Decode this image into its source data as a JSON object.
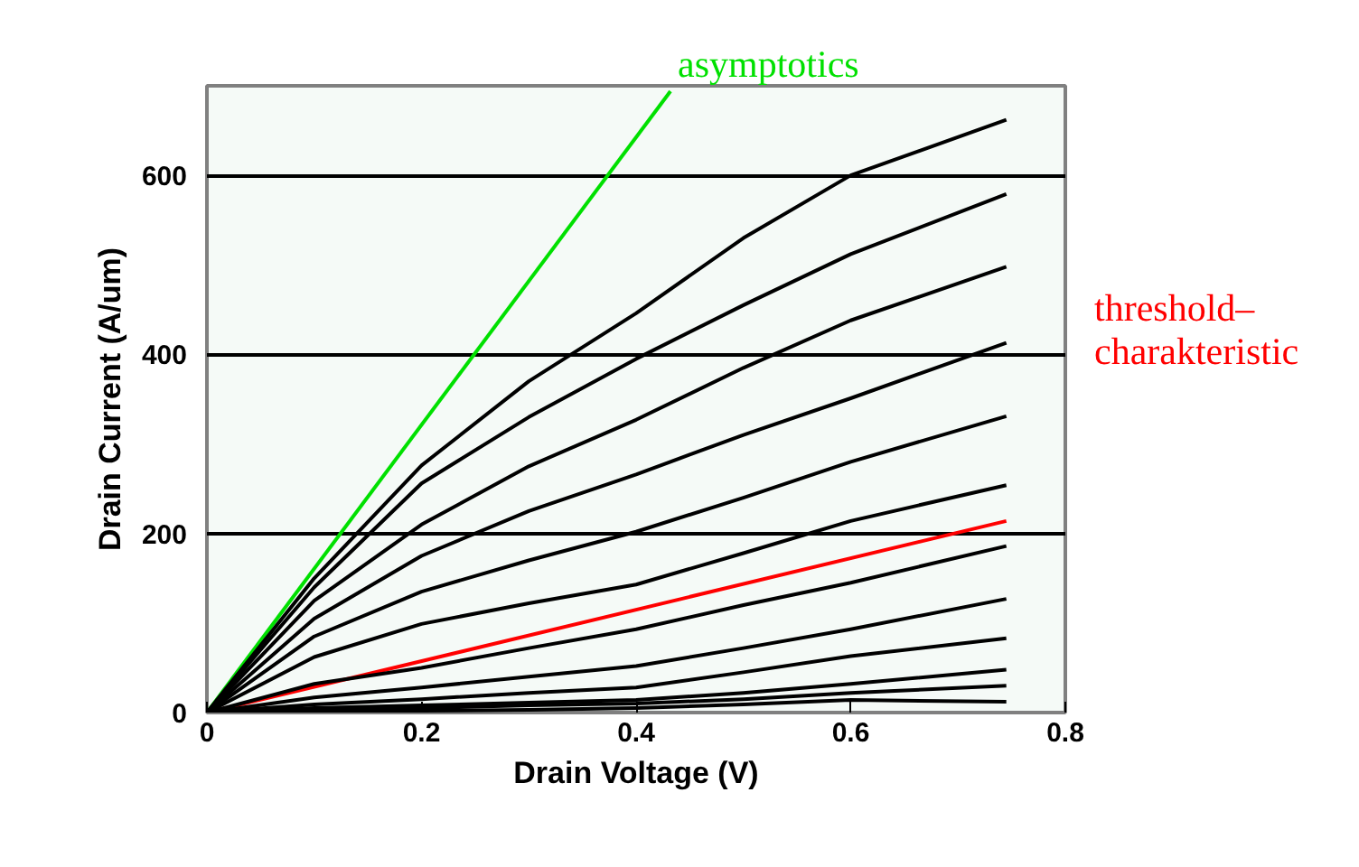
{
  "chart_data": {
    "type": "line",
    "xlabel": "Drain Voltage (V)",
    "ylabel": "Drain Current (A/um)",
    "xlim": [
      0,
      0.8
    ],
    "ylim": [
      0,
      700
    ],
    "xticks": [
      0,
      0.2,
      0.4,
      0.6,
      0.8
    ],
    "yticks": [
      0,
      200,
      400,
      600
    ],
    "grid": "y",
    "x": [
      0,
      0.1,
      0.2,
      0.3,
      0.4,
      0.5,
      0.6,
      0.745
    ],
    "series": [
      {
        "name": "asymptotics",
        "color": "#00e000",
        "x": [
          0,
          0.432
        ],
        "values": [
          0,
          694
        ]
      },
      {
        "name": "threshold–\ncharakteristic",
        "color": "#ff0000",
        "x": [
          0,
          0.745
        ],
        "values": [
          0,
          214
        ]
      },
      {
        "color": "#000000",
        "values": [
          0,
          150,
          276,
          370,
          446,
          530,
          600,
          662
        ]
      },
      {
        "color": "#000000",
        "values": [
          0,
          140,
          256,
          330,
          395,
          455,
          512,
          579
        ]
      },
      {
        "color": "#000000",
        "values": [
          0,
          125,
          210,
          275,
          327,
          385,
          438,
          498
        ]
      },
      {
        "color": "#000000",
        "values": [
          0,
          105,
          175,
          225,
          266,
          310,
          351,
          413
        ]
      },
      {
        "color": "#000000",
        "values": [
          0,
          85,
          135,
          170,
          202,
          240,
          280,
          331
        ]
      },
      {
        "color": "#000000",
        "values": [
          0,
          62,
          99,
          122,
          143,
          178,
          214,
          254
        ]
      },
      {
        "color": "#000000",
        "values": [
          0,
          32,
          50,
          72,
          93,
          120,
          145,
          186
        ]
      },
      {
        "color": "#000000",
        "values": [
          0,
          17,
          28,
          40,
          52,
          72,
          93,
          127
        ]
      },
      {
        "color": "#000000",
        "values": [
          0,
          9,
          15,
          22,
          28,
          45,
          63,
          83
        ]
      },
      {
        "color": "#000000",
        "values": [
          0,
          5,
          8,
          11,
          14,
          22,
          32,
          48
        ]
      },
      {
        "color": "#000000",
        "values": [
          0,
          3,
          5,
          8,
          10,
          15,
          22,
          30
        ]
      },
      {
        "color": "#000000",
        "values": [
          0,
          1,
          2,
          3,
          5,
          9,
          14,
          12
        ]
      }
    ]
  }
}
